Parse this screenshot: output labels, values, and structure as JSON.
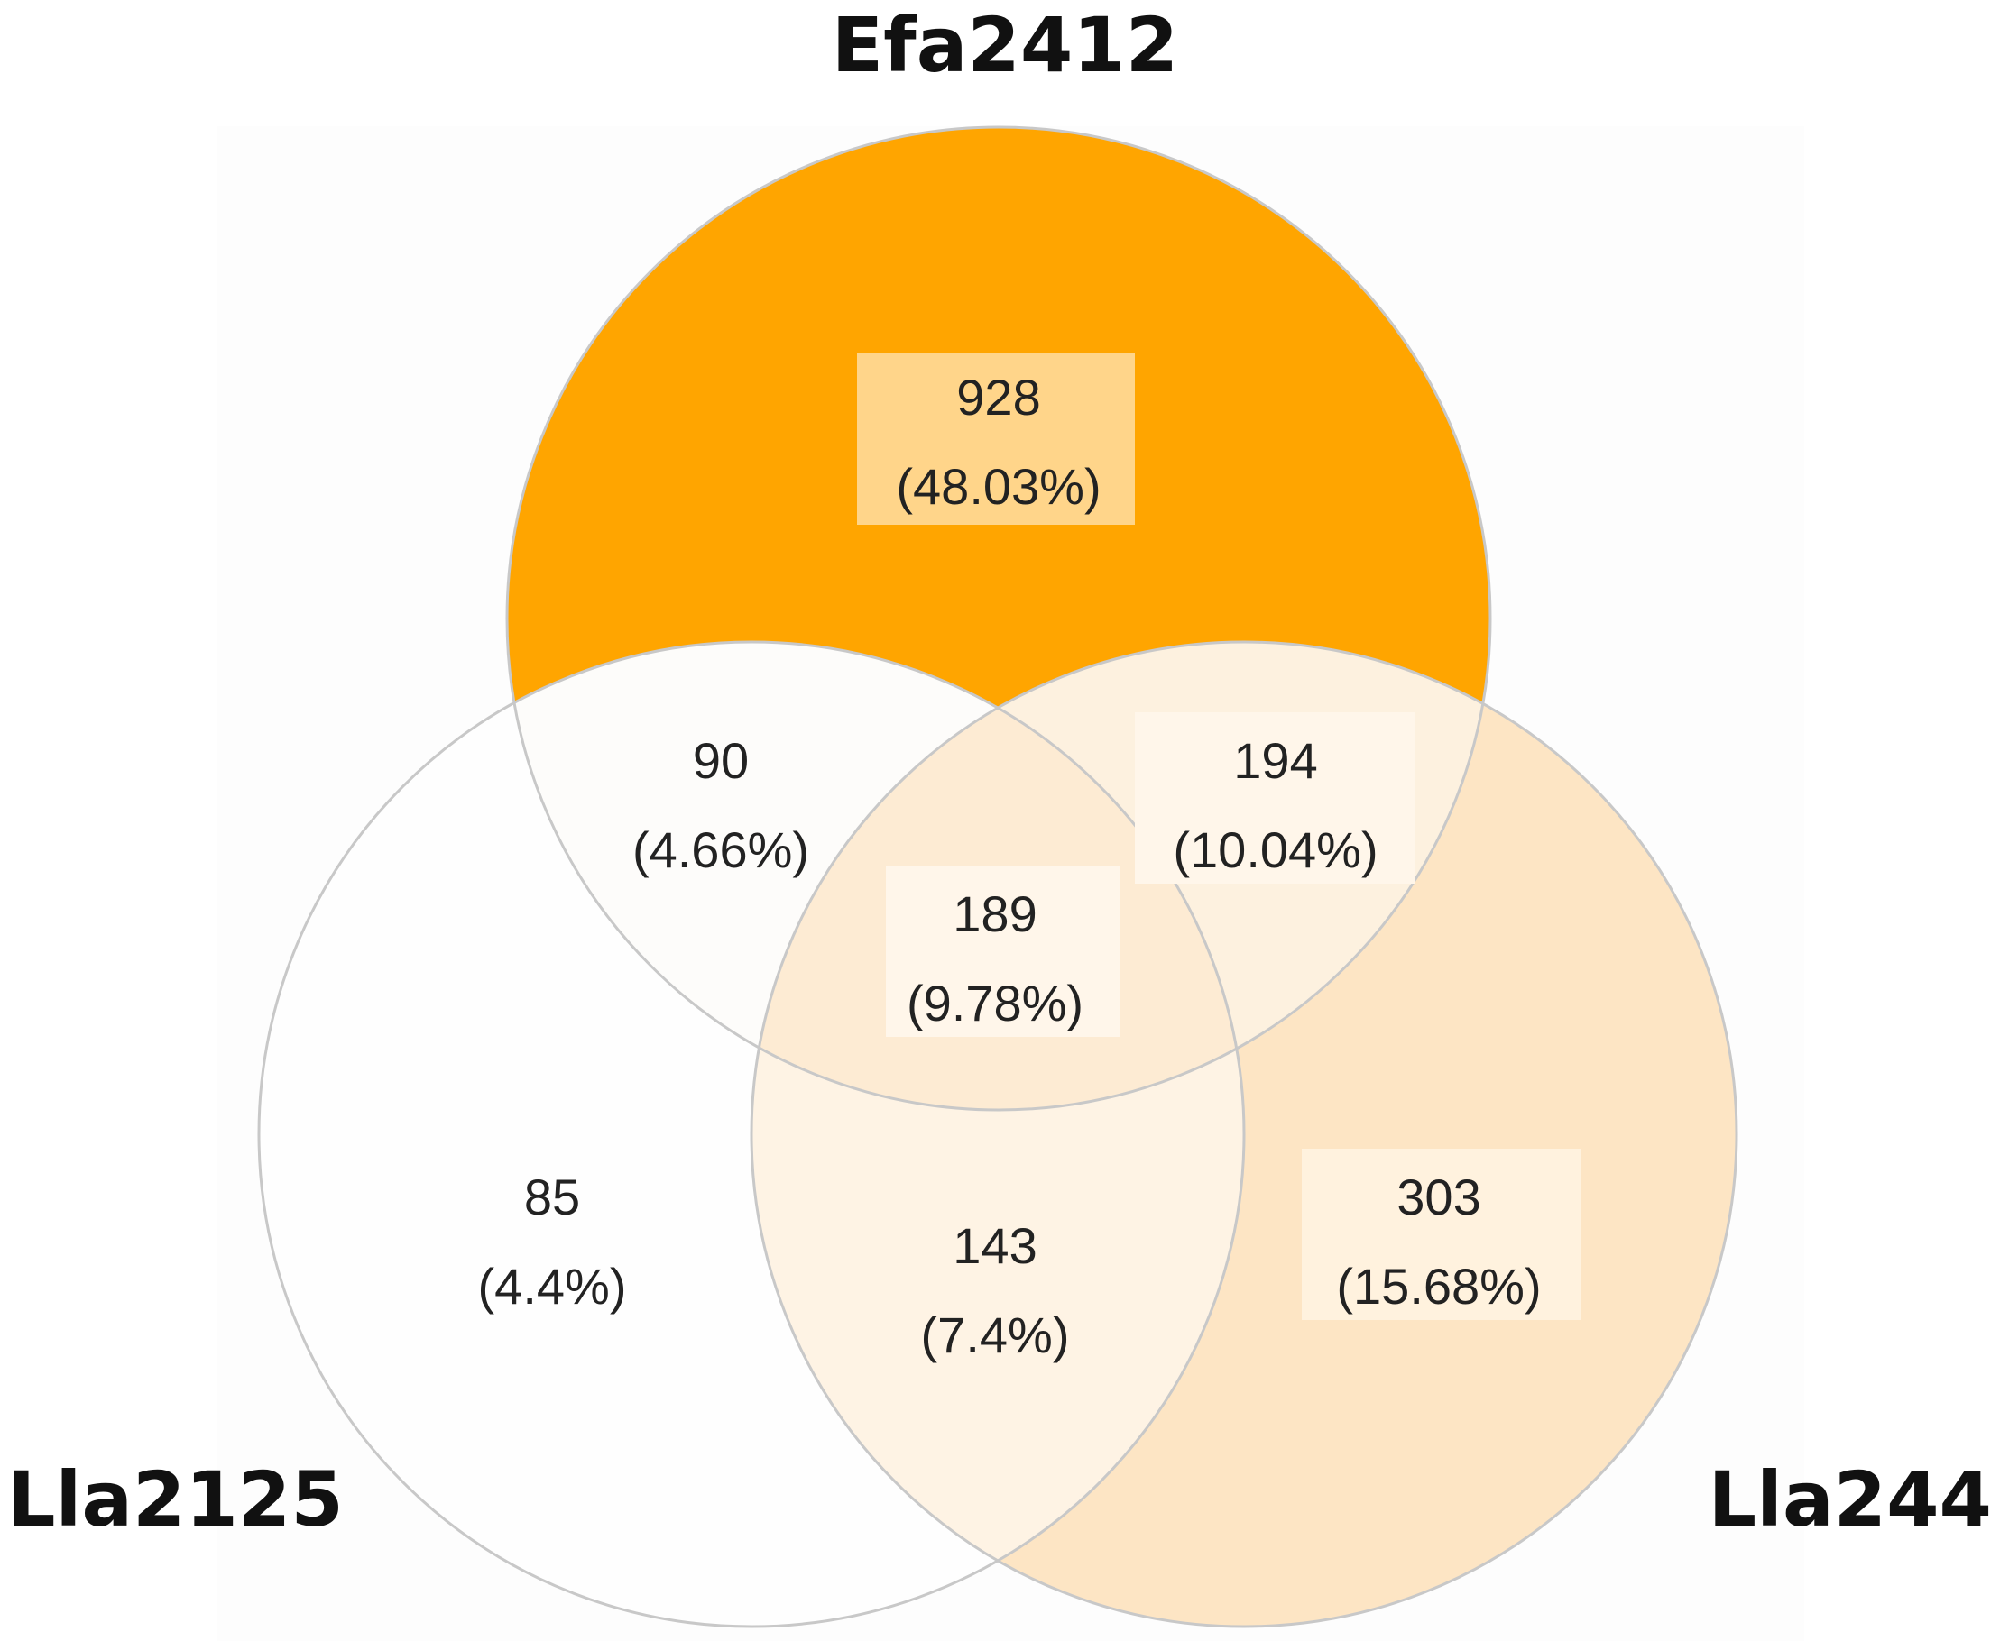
{
  "sets": [
    {
      "label": "Efa2412"
    },
    {
      "label": "Lla2125"
    },
    {
      "label": "Lla244"
    }
  ],
  "regions": [
    {
      "count": 928,
      "percent": "(48.03%)"
    },
    {
      "count": 90,
      "percent": "(4.66%)"
    },
    {
      "count": 194,
      "percent": "(10.04%)"
    },
    {
      "count": 189,
      "percent": "(9.78%)"
    },
    {
      "count": 85,
      "percent": "(4.4%)"
    },
    {
      "count": 143,
      "percent": "(7.4%)"
    },
    {
      "count": 303,
      "percent": "(15.68%)"
    }
  ]
}
